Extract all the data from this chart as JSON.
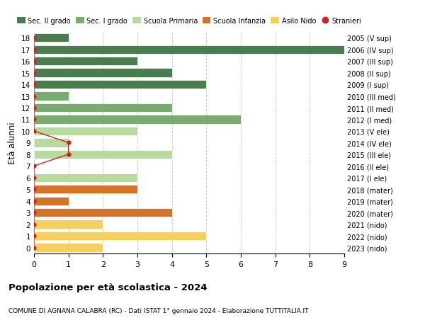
{
  "ages": [
    18,
    17,
    16,
    15,
    14,
    13,
    12,
    11,
    10,
    9,
    8,
    7,
    6,
    5,
    4,
    3,
    2,
    1,
    0
  ],
  "right_labels": [
    "2005 (V sup)",
    "2006 (IV sup)",
    "2007 (III sup)",
    "2008 (II sup)",
    "2009 (I sup)",
    "2010 (III med)",
    "2011 (II med)",
    "2012 (I med)",
    "2013 (V ele)",
    "2014 (IV ele)",
    "2015 (III ele)",
    "2016 (II ele)",
    "2017 (I ele)",
    "2018 (mater)",
    "2019 (mater)",
    "2020 (mater)",
    "2021 (nido)",
    "2022 (nido)",
    "2023 (nido)"
  ],
  "bar_values": [
    1,
    9,
    3,
    4,
    5,
    1,
    4,
    6,
    3,
    1,
    4,
    0,
    3,
    3,
    1,
    4,
    2,
    5,
    2
  ],
  "bar_colors": [
    "#4a7c4e",
    "#4a7c4e",
    "#4a7c4e",
    "#4a7c4e",
    "#4a7c4e",
    "#7aab6e",
    "#7aab6e",
    "#7aab6e",
    "#b8d9a0",
    "#b8d9a0",
    "#b8d9a0",
    "#b8d9a0",
    "#b8d9a0",
    "#d4732a",
    "#d4732a",
    "#d4732a",
    "#f5d060",
    "#f5d060",
    "#f5d060"
  ],
  "stranieri_values": [
    0,
    0,
    0,
    0,
    0,
    0,
    0,
    0,
    0,
    1,
    1,
    0,
    0,
    0,
    0,
    0,
    0,
    0,
    0
  ],
  "stranieri_color": "#cc2222",
  "xlim": [
    0,
    9
  ],
  "xticks": [
    0,
    1,
    2,
    3,
    4,
    5,
    6,
    7,
    8,
    9
  ],
  "ylabel_left": "Età alunni",
  "title_bold": "Popolazione per età scolastica - 2024",
  "subtitle": "COMUNE DI AGNANA CALABRA (RC) - Dati ISTAT 1° gennaio 2024 - Elaborazione TUTTITALIA.IT",
  "legend_entries": [
    {
      "label": "Sec. II grado",
      "color": "#4a7c4e"
    },
    {
      "label": "Sec. I grado",
      "color": "#7aab6e"
    },
    {
      "label": "Scuola Primaria",
      "color": "#b8d9a0"
    },
    {
      "label": "Scuola Infanzia",
      "color": "#d4732a"
    },
    {
      "label": "Asilo Nido",
      "color": "#f5d060"
    },
    {
      "label": "Stranieri",
      "color": "#cc2222"
    }
  ],
  "background_color": "#ffffff",
  "grid_color": "#cccccc"
}
